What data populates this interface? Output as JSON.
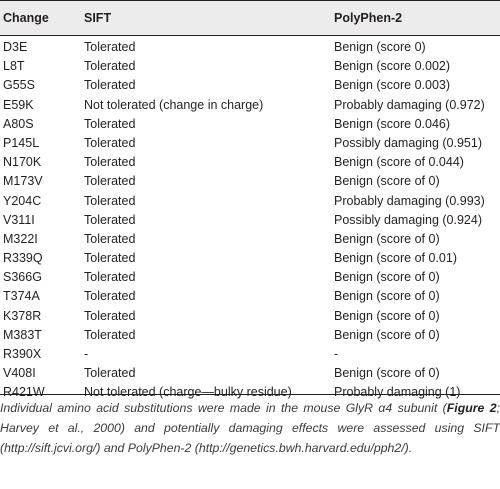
{
  "table": {
    "headers": [
      "Change",
      "SIFT",
      "PolyPhen-2"
    ],
    "rows": [
      [
        "D3E",
        "Tolerated",
        "Benign (score 0)"
      ],
      [
        "L8T",
        "Tolerated",
        "Benign (score 0.002)"
      ],
      [
        "G55S",
        "Tolerated",
        "Benign (score 0.003)"
      ],
      [
        "E59K",
        "Not tolerated (change in charge)",
        "Probably damaging (0.972)"
      ],
      [
        "A80S",
        "Tolerated",
        "Benign (score 0.046)"
      ],
      [
        "P145L",
        "Tolerated",
        "Possibly damaging (0.951)"
      ],
      [
        "N170K",
        "Tolerated",
        "Benign (score of 0.044)"
      ],
      [
        "M173V",
        "Tolerated",
        "Benign (score of 0)"
      ],
      [
        "Y204C",
        "Tolerated",
        "Probably damaging (0.993)"
      ],
      [
        "V311I",
        "Tolerated",
        "Possibly damaging (0.924)"
      ],
      [
        "M322I",
        "Tolerated",
        "Benign (score of 0)"
      ],
      [
        "R339Q",
        "Tolerated",
        "Benign (score of 0.01)"
      ],
      [
        "S366G",
        "Tolerated",
        "Benign (score of 0)"
      ],
      [
        "T374A",
        "Tolerated",
        "Benign (score of 0)"
      ],
      [
        "K378R",
        "Tolerated",
        "Benign (score of 0)"
      ],
      [
        "M383T",
        "Tolerated",
        "Benign (score of 0)"
      ],
      [
        "R390X",
        "-",
        "-"
      ],
      [
        "V408I",
        "Tolerated",
        "Benign (score of 0)"
      ],
      [
        "R421W",
        "Not tolerated (charge—bulky residue)",
        "Probably damaging (1)"
      ]
    ]
  },
  "footnote": {
    "part1": "Individual amino acid substitutions were made in the mouse GlyR α4 subunit (",
    "figure_ref": "Figure 2",
    "part2": "; ",
    "citation": "Harvey et al., 2000",
    "part3": ") and potentially damaging effects were assessed using SIFT (http://sift.jcvi.org/) and PolyPhen-2 (http://genetics.bwh.harvard.edu/pph2/)."
  }
}
